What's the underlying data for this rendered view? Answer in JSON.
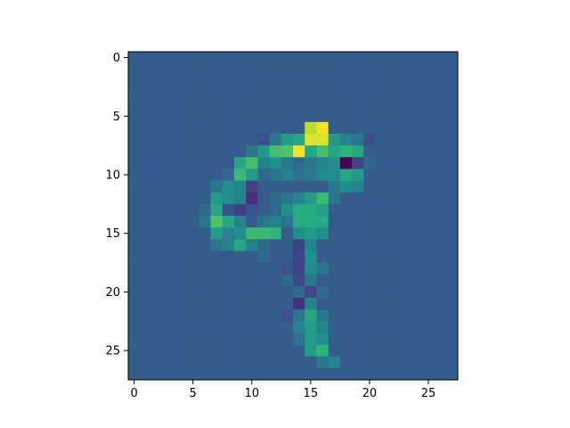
{
  "chart_data": {
    "type": "heatmap",
    "colormap": "viridis",
    "rows": 28,
    "cols": 28,
    "background_value": 0.3,
    "value_range": [
      0,
      1
    ],
    "xlim": [
      -0.5,
      27.5
    ],
    "ylim": [
      27.5,
      -0.5
    ],
    "x_ticks": [
      0,
      5,
      10,
      15,
      20,
      25
    ],
    "y_ticks": [
      0,
      5,
      10,
      15,
      20,
      25
    ],
    "x_tick_labels": [
      "0",
      "5",
      "10",
      "15",
      "20",
      "25"
    ],
    "y_tick_labels": [
      "0",
      "5",
      "10",
      "15",
      "20",
      "25"
    ],
    "cells": [
      [
        6,
        15,
        0.9
      ],
      [
        6,
        16,
        0.98
      ],
      [
        7,
        11,
        0.25
      ],
      [
        7,
        12,
        0.4
      ],
      [
        7,
        13,
        0.55
      ],
      [
        7,
        14,
        0.6
      ],
      [
        7,
        15,
        0.95
      ],
      [
        7,
        16,
        0.95
      ],
      [
        7,
        17,
        0.55
      ],
      [
        7,
        18,
        0.45
      ],
      [
        7,
        19,
        0.4
      ],
      [
        7,
        20,
        0.25
      ],
      [
        8,
        10,
        0.4
      ],
      [
        8,
        11,
        0.55
      ],
      [
        8,
        12,
        0.7
      ],
      [
        8,
        13,
        0.72
      ],
      [
        8,
        14,
        0.98
      ],
      [
        8,
        15,
        0.6
      ],
      [
        8,
        16,
        0.7
      ],
      [
        8,
        17,
        0.6
      ],
      [
        8,
        18,
        0.65
      ],
      [
        8,
        19,
        0.6
      ],
      [
        9,
        9,
        0.6
      ],
      [
        9,
        10,
        0.7
      ],
      [
        9,
        11,
        0.45
      ],
      [
        9,
        12,
        0.5
      ],
      [
        9,
        13,
        0.4
      ],
      [
        9,
        14,
        0.35
      ],
      [
        9,
        15,
        0.4
      ],
      [
        9,
        16,
        0.45
      ],
      [
        9,
        17,
        0.5
      ],
      [
        9,
        18,
        0.0
      ],
      [
        9,
        19,
        0.2
      ],
      [
        9,
        20,
        0.35
      ],
      [
        10,
        8,
        0.35
      ],
      [
        10,
        9,
        0.68
      ],
      [
        10,
        10,
        0.55
      ],
      [
        10,
        11,
        0.35
      ],
      [
        10,
        12,
        0.4
      ],
      [
        10,
        13,
        0.45
      ],
      [
        10,
        14,
        0.38
      ],
      [
        10,
        15,
        0.42
      ],
      [
        10,
        16,
        0.48
      ],
      [
        10,
        17,
        0.5
      ],
      [
        10,
        18,
        0.6
      ],
      [
        10,
        19,
        0.55
      ],
      [
        11,
        7,
        0.4
      ],
      [
        11,
        8,
        0.5
      ],
      [
        11,
        9,
        0.45
      ],
      [
        11,
        10,
        0.2
      ],
      [
        11,
        17,
        0.4
      ],
      [
        11,
        18,
        0.5
      ],
      [
        11,
        19,
        0.45
      ],
      [
        12,
        7,
        0.55
      ],
      [
        12,
        8,
        0.5
      ],
      [
        12,
        9,
        0.45
      ],
      [
        12,
        10,
        0.15
      ],
      [
        12,
        11,
        0.3
      ],
      [
        12,
        12,
        0.35
      ],
      [
        12,
        13,
        0.4
      ],
      [
        12,
        14,
        0.45
      ],
      [
        12,
        15,
        0.55
      ],
      [
        12,
        16,
        0.68
      ],
      [
        12,
        17,
        0.4
      ],
      [
        13,
        6,
        0.35
      ],
      [
        13,
        7,
        0.6
      ],
      [
        13,
        8,
        0.25
      ],
      [
        13,
        9,
        0.2
      ],
      [
        13,
        10,
        0.25
      ],
      [
        13,
        11,
        0.3
      ],
      [
        13,
        12,
        0.35
      ],
      [
        13,
        13,
        0.5
      ],
      [
        13,
        14,
        0.62
      ],
      [
        13,
        15,
        0.62
      ],
      [
        13,
        16,
        0.58
      ],
      [
        14,
        6,
        0.4
      ],
      [
        14,
        7,
        0.72
      ],
      [
        14,
        8,
        0.6
      ],
      [
        14,
        9,
        0.45
      ],
      [
        14,
        10,
        0.3
      ],
      [
        14,
        11,
        0.4
      ],
      [
        14,
        12,
        0.45
      ],
      [
        14,
        13,
        0.4
      ],
      [
        14,
        14,
        0.62
      ],
      [
        14,
        15,
        0.62
      ],
      [
        14,
        16,
        0.62
      ],
      [
        15,
        7,
        0.55
      ],
      [
        15,
        8,
        0.45
      ],
      [
        15,
        9,
        0.5
      ],
      [
        15,
        10,
        0.68
      ],
      [
        15,
        11,
        0.68
      ],
      [
        15,
        12,
        0.65
      ],
      [
        15,
        13,
        0.3
      ],
      [
        15,
        14,
        0.5
      ],
      [
        15,
        15,
        0.55
      ],
      [
        15,
        16,
        0.5
      ],
      [
        16,
        7,
        0.4
      ],
      [
        16,
        8,
        0.45
      ],
      [
        16,
        9,
        0.6
      ],
      [
        16,
        10,
        0.45
      ],
      [
        16,
        11,
        0.35
      ],
      [
        16,
        14,
        0.2
      ],
      [
        16,
        15,
        0.45
      ],
      [
        17,
        11,
        0.35
      ],
      [
        17,
        14,
        0.22
      ],
      [
        17,
        15,
        0.5
      ],
      [
        18,
        13,
        0.25
      ],
      [
        18,
        14,
        0.2
      ],
      [
        18,
        15,
        0.48
      ],
      [
        18,
        16,
        0.4
      ],
      [
        19,
        13,
        0.35
      ],
      [
        19,
        14,
        0.22
      ],
      [
        19,
        15,
        0.4
      ],
      [
        19,
        16,
        0.3
      ],
      [
        20,
        13,
        0.3
      ],
      [
        20,
        14,
        0.35
      ],
      [
        20,
        15,
        0.22
      ],
      [
        20,
        16,
        0.35
      ],
      [
        21,
        13,
        0.3
      ],
      [
        21,
        14,
        0.15
      ],
      [
        21,
        15,
        0.45
      ],
      [
        22,
        13,
        0.25
      ],
      [
        22,
        14,
        0.4
      ],
      [
        22,
        15,
        0.6
      ],
      [
        22,
        16,
        0.4
      ],
      [
        23,
        14,
        0.45
      ],
      [
        23,
        15,
        0.55
      ],
      [
        23,
        16,
        0.45
      ],
      [
        24,
        14,
        0.4
      ],
      [
        24,
        15,
        0.55
      ],
      [
        24,
        16,
        0.5
      ],
      [
        25,
        15,
        0.55
      ],
      [
        25,
        16,
        0.65
      ],
      [
        26,
        16,
        0.4
      ],
      [
        26,
        17,
        0.45
      ]
    ]
  }
}
